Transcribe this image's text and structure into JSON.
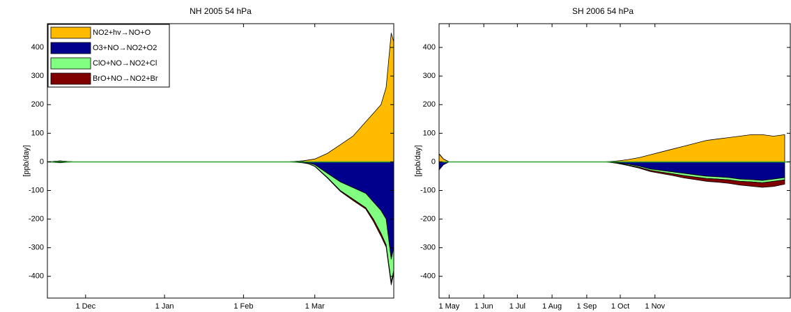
{
  "chart_data": [
    {
      "type": "stacked-area",
      "title": "NH 2005 54 hPa",
      "ylabel": "[ppb/day]",
      "legend": "upper left",
      "xlim": [
        -15,
        121
      ],
      "xticks": [
        {
          "value": 0,
          "label": "1 Dec"
        },
        {
          "value": 31,
          "label": "1 Jan"
        },
        {
          "value": 62,
          "label": "1 Feb"
        },
        {
          "value": 90,
          "label": "1 Mar"
        }
      ],
      "ylim": [
        -476,
        483
      ],
      "yticks": [
        -400,
        -300,
        -200,
        -100,
        0,
        100,
        200,
        300,
        400
      ],
      "x": [
        -15,
        -10,
        -5,
        0,
        10,
        20,
        30,
        40,
        50,
        60,
        70,
        80,
        85,
        90,
        95,
        100,
        105,
        110,
        113,
        116,
        118,
        120,
        121
      ],
      "series": [
        {
          "name": "NO2+hv→NO+O",
          "color": "#ffbb00",
          "values": [
            0,
            3,
            0,
            0,
            0,
            0,
            0,
            0,
            0,
            0,
            0,
            0,
            3,
            10,
            30,
            60,
            90,
            140,
            170,
            200,
            260,
            450,
            420
          ]
        },
        {
          "name": "O3+NO→NO2+O2",
          "color": "#00008c",
          "values": [
            0,
            -3,
            0,
            0,
            0,
            0,
            0,
            0,
            0,
            0,
            0,
            0,
            -3,
            -10,
            -40,
            -70,
            -90,
            -110,
            -140,
            -170,
            -200,
            -340,
            -300
          ]
        },
        {
          "name": "ClO+NO→NO2+Cl",
          "color": "#80ff80",
          "values": [
            0,
            0,
            0,
            0,
            0,
            0,
            0,
            0,
            0,
            0,
            0,
            0,
            0,
            -5,
            -15,
            -30,
            -40,
            -50,
            -60,
            -80,
            -90,
            -80,
            -80
          ]
        },
        {
          "name": "BrO+NO→NO2+Br",
          "color": "#800000",
          "values": [
            0,
            0,
            0,
            0,
            0,
            0,
            0,
            0,
            0,
            0,
            0,
            0,
            0,
            -1,
            -2,
            -3,
            -5,
            -5,
            -8,
            -10,
            -8,
            -10,
            -10
          ]
        }
      ]
    },
    {
      "type": "stacked-area",
      "title": "SH 2006 54 hPa",
      "ylabel": "[ppb/day]",
      "xlim": [
        -9,
        305
      ],
      "xticks": [
        {
          "value": 0,
          "label": "1 May"
        },
        {
          "value": 31,
          "label": "1 Jun"
        },
        {
          "value": 61,
          "label": "1 Jul"
        },
        {
          "value": 92,
          "label": "1 Aug"
        },
        {
          "value": 123,
          "label": "1 Sep"
        },
        {
          "value": 153,
          "label": "1 Oct"
        },
        {
          "value": 184,
          "label": "1 Nov"
        }
      ],
      "ylim": [
        -476,
        483
      ],
      "yticks": [
        -400,
        -300,
        -200,
        -100,
        0,
        100,
        200,
        300,
        400
      ],
      "x": [
        -9,
        -5,
        0,
        30,
        60,
        90,
        120,
        140,
        150,
        160,
        170,
        180,
        190,
        200,
        210,
        220,
        230,
        240,
        250,
        260,
        270,
        280,
        290,
        300
      ],
      "series": [
        {
          "color": "#ffbb00",
          "values": [
            28,
            10,
            0,
            0,
            0,
            0,
            0,
            0,
            3,
            8,
            15,
            25,
            35,
            45,
            55,
            65,
            75,
            80,
            85,
            90,
            95,
            95,
            90,
            95
          ]
        },
        {
          "color": "#00008c",
          "values": [
            -28,
            -10,
            0,
            0,
            0,
            0,
            0,
            0,
            -3,
            -8,
            -15,
            -25,
            -30,
            -35,
            -40,
            -45,
            -50,
            -52,
            -55,
            -60,
            -62,
            -65,
            -60,
            -55
          ]
        },
        {
          "color": "#80ff80",
          "values": [
            0,
            0,
            0,
            0,
            0,
            0,
            0,
            0,
            -1,
            -3,
            -4,
            -5,
            -6,
            -7,
            -8,
            -8,
            -8,
            -8,
            -8,
            -8,
            -8,
            -8,
            -8,
            -8
          ]
        },
        {
          "color": "#800000",
          "values": [
            0,
            0,
            0,
            0,
            0,
            0,
            0,
            0,
            -1,
            -2,
            -3,
            -4,
            -5,
            -6,
            -8,
            -9,
            -10,
            -11,
            -12,
            -13,
            -15,
            -16,
            -18,
            -15
          ]
        }
      ]
    }
  ]
}
